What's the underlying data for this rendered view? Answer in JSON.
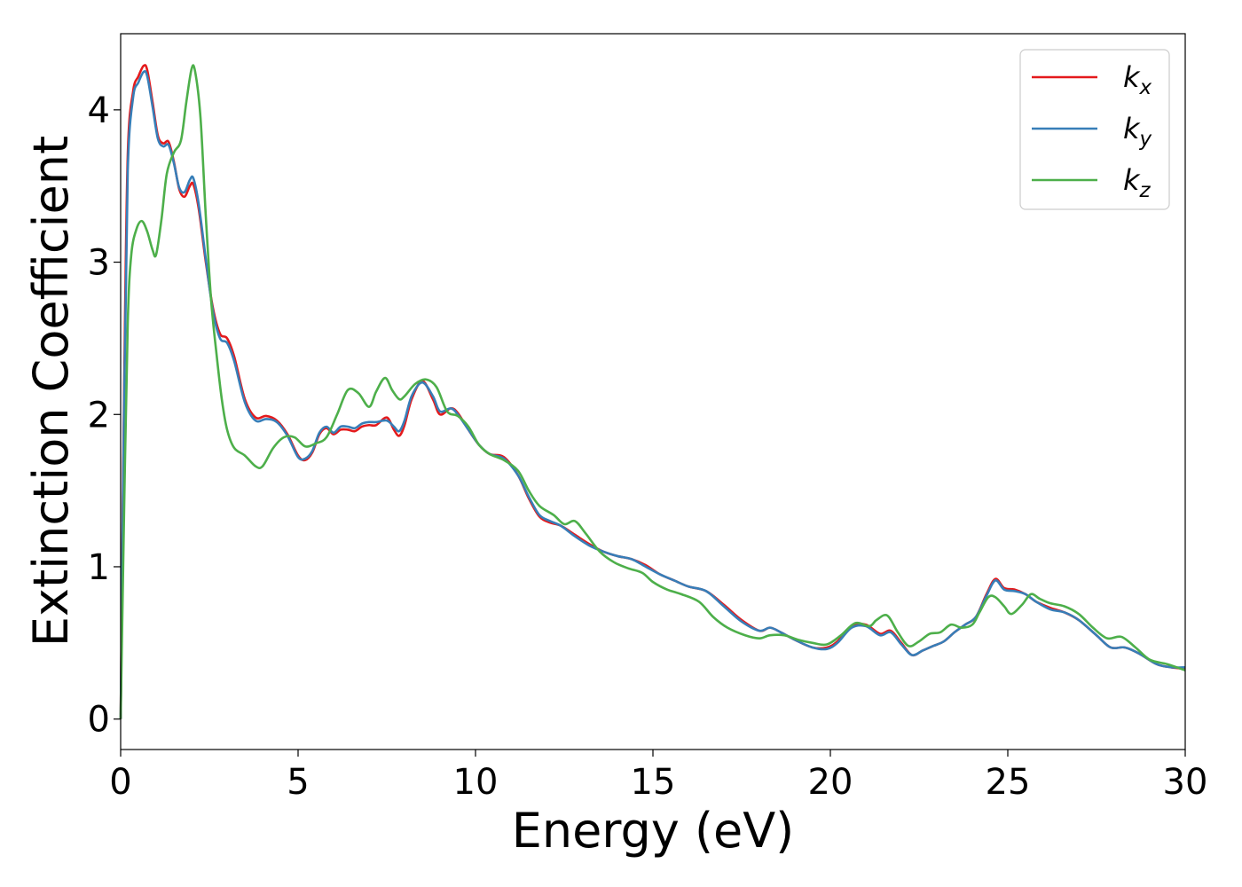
{
  "chart_data": {
    "type": "line",
    "xlabel": "Energy (eV)",
    "ylabel": "Extinction Coefficient",
    "xlim": [
      0,
      30
    ],
    "ylim": [
      -0.2,
      4.5
    ],
    "xticks": [
      0,
      5,
      10,
      15,
      20,
      25,
      30
    ],
    "yticks": [
      0,
      1,
      2,
      3,
      4
    ],
    "grid": false,
    "legend_position": "top-right",
    "series": [
      {
        "name": "k",
        "subscript": "x",
        "color": "#e41a1c",
        "points": [
          [
            0,
            0
          ],
          [
            0.1,
            2.2
          ],
          [
            0.2,
            3.7
          ],
          [
            0.35,
            4.12
          ],
          [
            0.5,
            4.22
          ],
          [
            0.65,
            4.29
          ],
          [
            0.75,
            4.26
          ],
          [
            0.9,
            4.05
          ],
          [
            1.05,
            3.83
          ],
          [
            1.2,
            3.78
          ],
          [
            1.35,
            3.79
          ],
          [
            1.5,
            3.66
          ],
          [
            1.65,
            3.48
          ],
          [
            1.8,
            3.43
          ],
          [
            1.95,
            3.5
          ],
          [
            2.05,
            3.51
          ],
          [
            2.2,
            3.35
          ],
          [
            2.4,
            3.0
          ],
          [
            2.6,
            2.7
          ],
          [
            2.8,
            2.53
          ],
          [
            3.0,
            2.5
          ],
          [
            3.2,
            2.38
          ],
          [
            3.5,
            2.1
          ],
          [
            3.8,
            1.98
          ],
          [
            4.1,
            1.99
          ],
          [
            4.4,
            1.96
          ],
          [
            4.7,
            1.87
          ],
          [
            5.0,
            1.73
          ],
          [
            5.2,
            1.7
          ],
          [
            5.4,
            1.75
          ],
          [
            5.6,
            1.87
          ],
          [
            5.8,
            1.91
          ],
          [
            6.0,
            1.87
          ],
          [
            6.2,
            1.9
          ],
          [
            6.4,
            1.9
          ],
          [
            6.6,
            1.89
          ],
          [
            6.8,
            1.92
          ],
          [
            7.0,
            1.93
          ],
          [
            7.2,
            1.93
          ],
          [
            7.5,
            1.98
          ],
          [
            7.7,
            1.9
          ],
          [
            7.85,
            1.86
          ],
          [
            8.0,
            1.93
          ],
          [
            8.2,
            2.1
          ],
          [
            8.5,
            2.22
          ],
          [
            8.8,
            2.1
          ],
          [
            9.0,
            2.0
          ],
          [
            9.3,
            2.04
          ],
          [
            9.5,
            2.01
          ],
          [
            9.8,
            1.9
          ],
          [
            10.1,
            1.8
          ],
          [
            10.4,
            1.74
          ],
          [
            10.8,
            1.72
          ],
          [
            11.2,
            1.6
          ],
          [
            11.5,
            1.45
          ],
          [
            11.8,
            1.33
          ],
          [
            12.1,
            1.29
          ],
          [
            12.4,
            1.27
          ],
          [
            12.8,
            1.21
          ],
          [
            13.2,
            1.15
          ],
          [
            13.6,
            1.1
          ],
          [
            14.0,
            1.07
          ],
          [
            14.4,
            1.05
          ],
          [
            14.8,
            1.01
          ],
          [
            15.2,
            0.95
          ],
          [
            15.6,
            0.91
          ],
          [
            16.0,
            0.87
          ],
          [
            16.5,
            0.84
          ],
          [
            17.0,
            0.75
          ],
          [
            17.5,
            0.65
          ],
          [
            18.0,
            0.58
          ],
          [
            18.3,
            0.6
          ],
          [
            18.6,
            0.57
          ],
          [
            19.0,
            0.52
          ],
          [
            19.5,
            0.47
          ],
          [
            19.9,
            0.47
          ],
          [
            20.2,
            0.51
          ],
          [
            20.6,
            0.61
          ],
          [
            21.0,
            0.62
          ],
          [
            21.4,
            0.56
          ],
          [
            21.7,
            0.58
          ],
          [
            22.0,
            0.5
          ],
          [
            22.3,
            0.42
          ],
          [
            22.6,
            0.45
          ],
          [
            22.9,
            0.48
          ],
          [
            23.2,
            0.51
          ],
          [
            23.5,
            0.57
          ],
          [
            23.8,
            0.62
          ],
          [
            24.1,
            0.67
          ],
          [
            24.4,
            0.82
          ],
          [
            24.65,
            0.92
          ],
          [
            24.9,
            0.86
          ],
          [
            25.2,
            0.85
          ],
          [
            25.5,
            0.82
          ],
          [
            25.8,
            0.77
          ],
          [
            26.2,
            0.73
          ],
          [
            26.6,
            0.7
          ],
          [
            27.0,
            0.65
          ],
          [
            27.5,
            0.55
          ],
          [
            27.9,
            0.47
          ],
          [
            28.3,
            0.47
          ],
          [
            28.7,
            0.43
          ],
          [
            29.2,
            0.36
          ],
          [
            29.6,
            0.34
          ],
          [
            30.0,
            0.33
          ]
        ]
      },
      {
        "name": "k",
        "subscript": "y",
        "color": "#377eb8",
        "points": [
          [
            0,
            0
          ],
          [
            0.1,
            2.1
          ],
          [
            0.2,
            3.6
          ],
          [
            0.35,
            4.08
          ],
          [
            0.5,
            4.18
          ],
          [
            0.65,
            4.25
          ],
          [
            0.75,
            4.22
          ],
          [
            0.9,
            4.02
          ],
          [
            1.05,
            3.81
          ],
          [
            1.2,
            3.76
          ],
          [
            1.35,
            3.77
          ],
          [
            1.5,
            3.65
          ],
          [
            1.65,
            3.49
          ],
          [
            1.8,
            3.46
          ],
          [
            1.95,
            3.54
          ],
          [
            2.05,
            3.55
          ],
          [
            2.2,
            3.38
          ],
          [
            2.4,
            3.02
          ],
          [
            2.6,
            2.68
          ],
          [
            2.8,
            2.5
          ],
          [
            3.0,
            2.47
          ],
          [
            3.2,
            2.35
          ],
          [
            3.5,
            2.08
          ],
          [
            3.8,
            1.96
          ],
          [
            4.1,
            1.97
          ],
          [
            4.4,
            1.95
          ],
          [
            4.7,
            1.86
          ],
          [
            5.0,
            1.72
          ],
          [
            5.2,
            1.71
          ],
          [
            5.4,
            1.76
          ],
          [
            5.6,
            1.88
          ],
          [
            5.8,
            1.92
          ],
          [
            6.0,
            1.88
          ],
          [
            6.2,
            1.92
          ],
          [
            6.4,
            1.92
          ],
          [
            6.6,
            1.91
          ],
          [
            6.8,
            1.94
          ],
          [
            7.0,
            1.95
          ],
          [
            7.2,
            1.95
          ],
          [
            7.5,
            1.96
          ],
          [
            7.7,
            1.92
          ],
          [
            7.85,
            1.89
          ],
          [
            8.0,
            1.96
          ],
          [
            8.2,
            2.12
          ],
          [
            8.5,
            2.21
          ],
          [
            8.8,
            2.12
          ],
          [
            9.0,
            2.02
          ],
          [
            9.3,
            2.04
          ],
          [
            9.5,
            2.0
          ],
          [
            9.8,
            1.9
          ],
          [
            10.1,
            1.8
          ],
          [
            10.4,
            1.74
          ],
          [
            10.8,
            1.71
          ],
          [
            11.2,
            1.6
          ],
          [
            11.5,
            1.46
          ],
          [
            11.8,
            1.34
          ],
          [
            12.1,
            1.3
          ],
          [
            12.4,
            1.27
          ],
          [
            12.8,
            1.2
          ],
          [
            13.2,
            1.14
          ],
          [
            13.6,
            1.1
          ],
          [
            14.0,
            1.07
          ],
          [
            14.4,
            1.05
          ],
          [
            14.8,
            1.0
          ],
          [
            15.2,
            0.95
          ],
          [
            15.6,
            0.91
          ],
          [
            16.0,
            0.87
          ],
          [
            16.5,
            0.84
          ],
          [
            17.0,
            0.74
          ],
          [
            17.5,
            0.64
          ],
          [
            18.0,
            0.58
          ],
          [
            18.3,
            0.6
          ],
          [
            18.6,
            0.57
          ],
          [
            19.0,
            0.52
          ],
          [
            19.5,
            0.47
          ],
          [
            19.9,
            0.46
          ],
          [
            20.2,
            0.5
          ],
          [
            20.6,
            0.6
          ],
          [
            21.0,
            0.61
          ],
          [
            21.4,
            0.55
          ],
          [
            21.7,
            0.57
          ],
          [
            22.0,
            0.49
          ],
          [
            22.3,
            0.42
          ],
          [
            22.6,
            0.45
          ],
          [
            22.9,
            0.48
          ],
          [
            23.2,
            0.51
          ],
          [
            23.5,
            0.57
          ],
          [
            23.8,
            0.62
          ],
          [
            24.1,
            0.67
          ],
          [
            24.4,
            0.81
          ],
          [
            24.65,
            0.91
          ],
          [
            24.9,
            0.85
          ],
          [
            25.2,
            0.84
          ],
          [
            25.5,
            0.82
          ],
          [
            25.8,
            0.77
          ],
          [
            26.2,
            0.72
          ],
          [
            26.6,
            0.7
          ],
          [
            27.0,
            0.65
          ],
          [
            27.5,
            0.55
          ],
          [
            27.9,
            0.47
          ],
          [
            28.3,
            0.47
          ],
          [
            28.7,
            0.43
          ],
          [
            29.2,
            0.36
          ],
          [
            29.6,
            0.34
          ],
          [
            30.0,
            0.34
          ]
        ]
      },
      {
        "name": "k",
        "subscript": "z",
        "color": "#4daf4a",
        "points": [
          [
            0,
            0
          ],
          [
            0.1,
            1.4
          ],
          [
            0.2,
            2.6
          ],
          [
            0.3,
            3.05
          ],
          [
            0.45,
            3.22
          ],
          [
            0.6,
            3.27
          ],
          [
            0.75,
            3.2
          ],
          [
            0.9,
            3.08
          ],
          [
            1.0,
            3.05
          ],
          [
            1.15,
            3.28
          ],
          [
            1.3,
            3.58
          ],
          [
            1.5,
            3.72
          ],
          [
            1.7,
            3.8
          ],
          [
            1.85,
            4.05
          ],
          [
            2.0,
            4.27
          ],
          [
            2.1,
            4.25
          ],
          [
            2.25,
            3.95
          ],
          [
            2.4,
            3.3
          ],
          [
            2.55,
            2.75
          ],
          [
            2.7,
            2.4
          ],
          [
            2.85,
            2.1
          ],
          [
            3.0,
            1.9
          ],
          [
            3.2,
            1.78
          ],
          [
            3.5,
            1.73
          ],
          [
            3.8,
            1.66
          ],
          [
            4.0,
            1.66
          ],
          [
            4.3,
            1.78
          ],
          [
            4.6,
            1.85
          ],
          [
            4.9,
            1.85
          ],
          [
            5.2,
            1.79
          ],
          [
            5.5,
            1.81
          ],
          [
            5.8,
            1.85
          ],
          [
            6.1,
            2.0
          ],
          [
            6.4,
            2.16
          ],
          [
            6.7,
            2.14
          ],
          [
            7.0,
            2.05
          ],
          [
            7.2,
            2.15
          ],
          [
            7.45,
            2.24
          ],
          [
            7.65,
            2.16
          ],
          [
            7.85,
            2.1
          ],
          [
            8.0,
            2.12
          ],
          [
            8.3,
            2.2
          ],
          [
            8.6,
            2.23
          ],
          [
            8.9,
            2.18
          ],
          [
            9.2,
            2.02
          ],
          [
            9.5,
            1.99
          ],
          [
            9.8,
            1.92
          ],
          [
            10.1,
            1.8
          ],
          [
            10.4,
            1.74
          ],
          [
            10.8,
            1.7
          ],
          [
            11.2,
            1.63
          ],
          [
            11.5,
            1.5
          ],
          [
            11.8,
            1.4
          ],
          [
            12.2,
            1.34
          ],
          [
            12.5,
            1.28
          ],
          [
            12.8,
            1.3
          ],
          [
            13.1,
            1.22
          ],
          [
            13.5,
            1.1
          ],
          [
            13.9,
            1.03
          ],
          [
            14.3,
            0.99
          ],
          [
            14.7,
            0.96
          ],
          [
            15.0,
            0.9
          ],
          [
            15.4,
            0.85
          ],
          [
            15.8,
            0.82
          ],
          [
            16.3,
            0.77
          ],
          [
            16.7,
            0.67
          ],
          [
            17.1,
            0.6
          ],
          [
            17.6,
            0.55
          ],
          [
            18.0,
            0.53
          ],
          [
            18.3,
            0.55
          ],
          [
            18.7,
            0.55
          ],
          [
            19.1,
            0.52
          ],
          [
            19.5,
            0.5
          ],
          [
            19.9,
            0.49
          ],
          [
            20.3,
            0.55
          ],
          [
            20.7,
            0.63
          ],
          [
            21.1,
            0.61
          ],
          [
            21.3,
            0.65
          ],
          [
            21.6,
            0.68
          ],
          [
            21.9,
            0.57
          ],
          [
            22.2,
            0.48
          ],
          [
            22.5,
            0.51
          ],
          [
            22.8,
            0.56
          ],
          [
            23.1,
            0.57
          ],
          [
            23.4,
            0.62
          ],
          [
            23.7,
            0.6
          ],
          [
            24.0,
            0.62
          ],
          [
            24.2,
            0.7
          ],
          [
            24.45,
            0.8
          ],
          [
            24.65,
            0.8
          ],
          [
            24.9,
            0.74
          ],
          [
            25.1,
            0.69
          ],
          [
            25.4,
            0.75
          ],
          [
            25.65,
            0.82
          ],
          [
            25.9,
            0.79
          ],
          [
            26.2,
            0.76
          ],
          [
            26.6,
            0.74
          ],
          [
            27.0,
            0.69
          ],
          [
            27.4,
            0.6
          ],
          [
            27.8,
            0.53
          ],
          [
            28.2,
            0.54
          ],
          [
            28.6,
            0.47
          ],
          [
            29.0,
            0.39
          ],
          [
            29.5,
            0.36
          ],
          [
            30.0,
            0.32
          ]
        ]
      }
    ]
  }
}
